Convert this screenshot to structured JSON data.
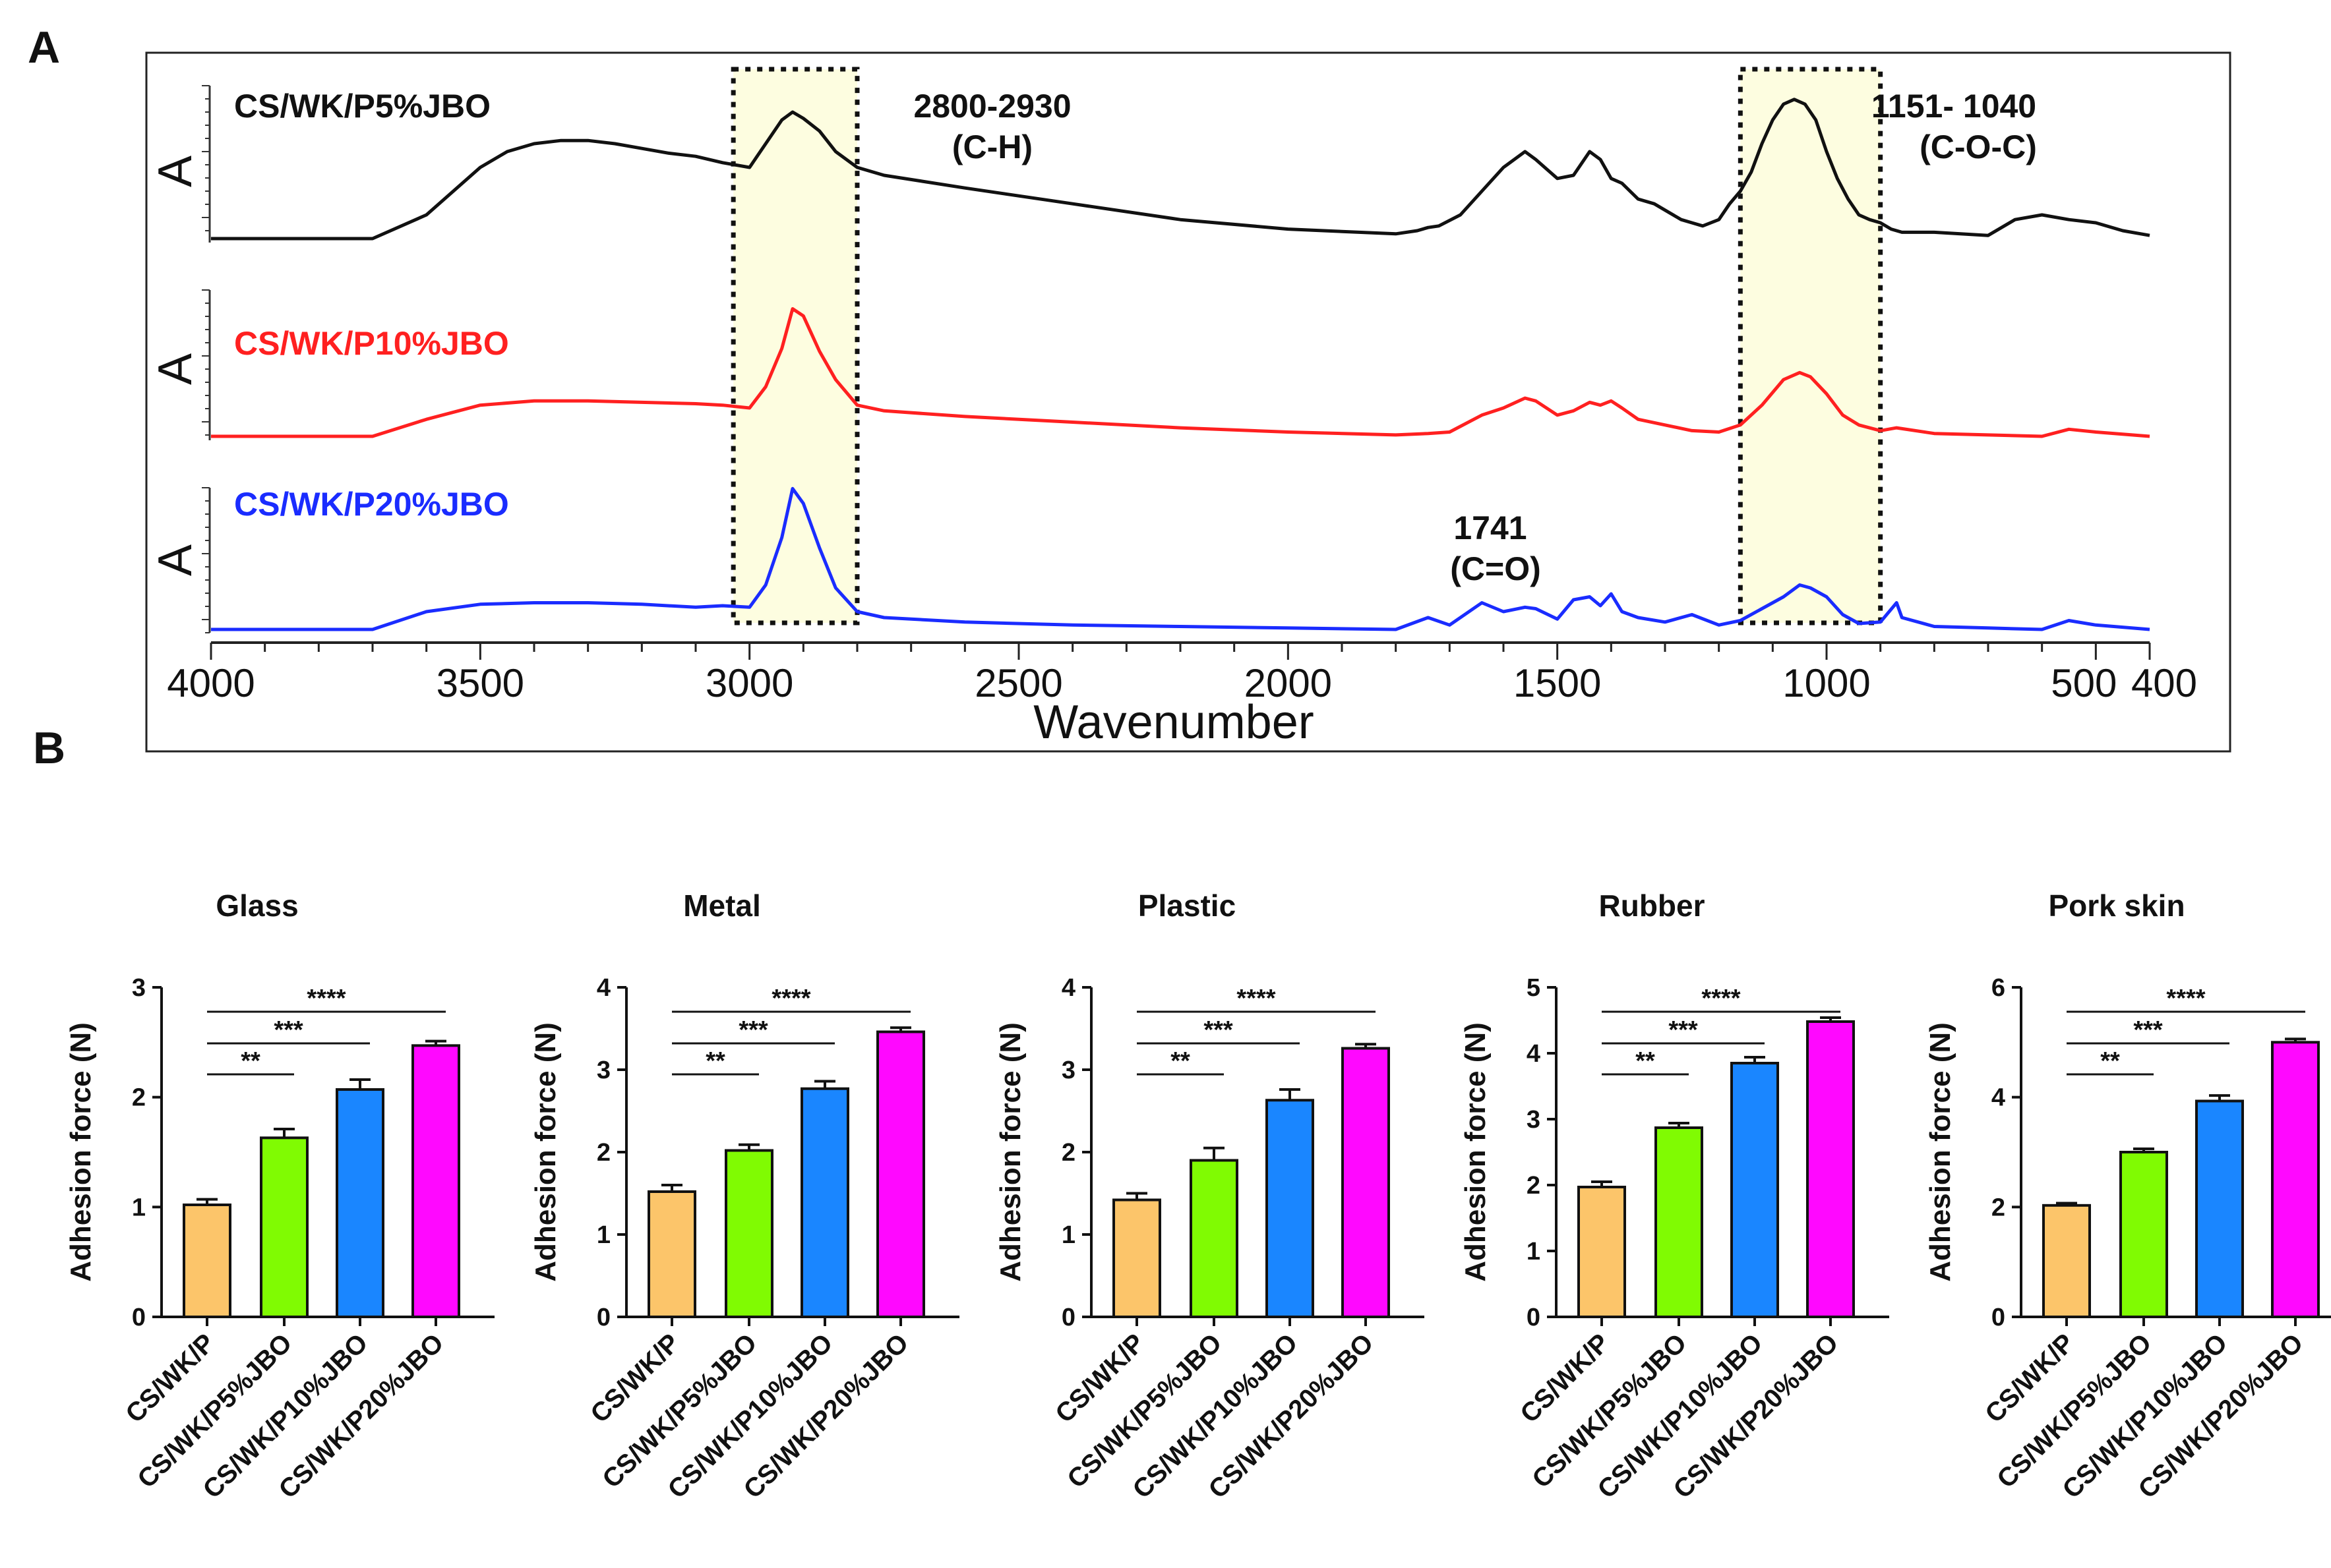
{
  "panels": {
    "a_letter": "A",
    "b_letter": "B"
  },
  "ftir": {
    "ylabel": "A",
    "xlabel": "Wavenumber",
    "x_ticks": [
      "4000",
      "3500",
      "3000",
      "2500",
      "2000",
      "1500",
      "1000",
      "500",
      "400"
    ],
    "series": [
      {
        "name": "CS/WK/P5%JBO",
        "color": "#111111"
      },
      {
        "name": "CS/WK/P10%JBO",
        "color": "#ff2020"
      },
      {
        "name": "CS/WK/P20%JBO",
        "color": "#1a2cff"
      }
    ],
    "annotations": {
      "ch_range": "2800-2930",
      "ch_group": "(C-H)",
      "coc_range": "1151- 1040",
      "coc_group": "(C-O-C)",
      "co_value": "1741",
      "co_group": "(C=O)"
    },
    "highlight_color": "#fdfde0"
  },
  "chart_data": [
    {
      "type": "line",
      "title": "",
      "xlabel": "Wavenumber",
      "ylabel": "A",
      "xlim": [
        4000,
        400
      ],
      "series": [
        {
          "name": "CS/WK/P5%JBO",
          "x": [
            4000,
            3700,
            3600,
            3500,
            3450,
            3400,
            3350,
            3300,
            3250,
            3200,
            3150,
            3100,
            3050,
            3000,
            2970,
            2940,
            2920,
            2900,
            2870,
            2840,
            2800,
            2750,
            2600,
            2400,
            2200,
            2000,
            1800,
            1760,
            1740,
            1720,
            1680,
            1640,
            1600,
            1560,
            1540,
            1500,
            1470,
            1440,
            1420,
            1400,
            1380,
            1350,
            1320,
            1300,
            1270,
            1250,
            1230,
            1200,
            1180,
            1160,
            1140,
            1120,
            1100,
            1080,
            1060,
            1040,
            1020,
            1000,
            980,
            960,
            940,
            920,
            900,
            880,
            860,
            800,
            700,
            650,
            600,
            550,
            500,
            450,
            400
          ],
          "y": [
            0.0,
            0.0,
            0.15,
            0.45,
            0.55,
            0.6,
            0.62,
            0.62,
            0.6,
            0.57,
            0.54,
            0.52,
            0.48,
            0.45,
            0.6,
            0.75,
            0.8,
            0.76,
            0.68,
            0.55,
            0.45,
            0.4,
            0.32,
            0.22,
            0.12,
            0.06,
            0.03,
            0.05,
            0.07,
            0.08,
            0.15,
            0.3,
            0.45,
            0.55,
            0.5,
            0.38,
            0.4,
            0.55,
            0.5,
            0.38,
            0.35,
            0.25,
            0.22,
            0.18,
            0.12,
            0.1,
            0.08,
            0.12,
            0.22,
            0.3,
            0.42,
            0.6,
            0.75,
            0.85,
            0.88,
            0.85,
            0.75,
            0.55,
            0.38,
            0.25,
            0.15,
            0.12,
            0.1,
            0.06,
            0.04,
            0.04,
            0.02,
            0.12,
            0.15,
            0.12,
            0.1,
            0.05,
            0.02
          ]
        },
        {
          "name": "CS/WK/P10%JBO",
          "x": [
            4000,
            3700,
            3600,
            3500,
            3400,
            3300,
            3200,
            3100,
            3050,
            3000,
            2970,
            2940,
            2920,
            2900,
            2870,
            2840,
            2800,
            2750,
            2600,
            2400,
            2200,
            2000,
            1800,
            1740,
            1700,
            1640,
            1600,
            1560,
            1540,
            1500,
            1470,
            1440,
            1420,
            1400,
            1380,
            1350,
            1300,
            1250,
            1200,
            1160,
            1120,
            1080,
            1050,
            1030,
            1000,
            970,
            940,
            900,
            870,
            800,
            700,
            600,
            550,
            500,
            400
          ],
          "y": [
            0.0,
            0.0,
            0.12,
            0.22,
            0.25,
            0.25,
            0.24,
            0.23,
            0.22,
            0.2,
            0.35,
            0.62,
            0.9,
            0.85,
            0.6,
            0.4,
            0.22,
            0.18,
            0.14,
            0.1,
            0.06,
            0.03,
            0.01,
            0.02,
            0.03,
            0.15,
            0.2,
            0.27,
            0.25,
            0.15,
            0.18,
            0.24,
            0.22,
            0.25,
            0.2,
            0.12,
            0.08,
            0.04,
            0.03,
            0.08,
            0.22,
            0.4,
            0.45,
            0.42,
            0.3,
            0.15,
            0.08,
            0.04,
            0.06,
            0.02,
            0.01,
            0.0,
            0.05,
            0.03,
            0.0
          ]
        },
        {
          "name": "CS/WK/P20%JBO",
          "x": [
            4000,
            3700,
            3600,
            3500,
            3400,
            3300,
            3200,
            3100,
            3050,
            3000,
            2970,
            2940,
            2920,
            2900,
            2870,
            2840,
            2800,
            2750,
            2600,
            2400,
            2200,
            2000,
            1800,
            1740,
            1700,
            1640,
            1600,
            1560,
            1540,
            1500,
            1470,
            1440,
            1420,
            1400,
            1380,
            1350,
            1300,
            1250,
            1200,
            1160,
            1120,
            1080,
            1050,
            1030,
            1000,
            970,
            940,
            900,
            870,
            860,
            800,
            700,
            600,
            550,
            500,
            400
          ],
          "y": [
            0.0,
            0.0,
            0.12,
            0.17,
            0.18,
            0.18,
            0.17,
            0.15,
            0.16,
            0.15,
            0.3,
            0.62,
            0.95,
            0.85,
            0.55,
            0.28,
            0.12,
            0.08,
            0.05,
            0.03,
            0.02,
            0.01,
            0.0,
            0.08,
            0.03,
            0.18,
            0.12,
            0.15,
            0.14,
            0.07,
            0.2,
            0.22,
            0.16,
            0.24,
            0.12,
            0.08,
            0.05,
            0.1,
            0.03,
            0.06,
            0.14,
            0.22,
            0.3,
            0.28,
            0.22,
            0.1,
            0.04,
            0.05,
            0.18,
            0.08,
            0.02,
            0.01,
            0.0,
            0.06,
            0.03,
            0.0
          ]
        }
      ]
    },
    {
      "type": "bar",
      "title": "Glass",
      "xlabel": "",
      "ylabel": "Adhesion force (N)",
      "categories": [
        "CS/WK/P",
        "CS/WK/P5%JBO",
        "CS/WK/P10%JBO",
        "CS/WK/P20%JBO"
      ],
      "values": [
        1.02,
        1.63,
        2.07,
        2.47
      ],
      "errors": [
        0.05,
        0.08,
        0.09,
        0.04
      ],
      "ylim": [
        0,
        3
      ],
      "yticks": [
        "0",
        "1",
        "2",
        "3"
      ],
      "colors": [
        "#fcc56a",
        "#80fb02",
        "#1a86ff",
        "#ff08ff"
      ],
      "significance": [
        "**",
        "***",
        "****"
      ]
    },
    {
      "type": "bar",
      "title": "Metal",
      "xlabel": "",
      "ylabel": "Adhesion force (N)",
      "categories": [
        "CS/WK/P",
        "CS/WK/P5%JBO",
        "CS/WK/P10%JBO",
        "CS/WK/P20%JBO"
      ],
      "values": [
        1.52,
        2.02,
        2.77,
        3.46
      ],
      "errors": [
        0.08,
        0.07,
        0.09,
        0.05
      ],
      "ylim": [
        0,
        4
      ],
      "yticks": [
        "0",
        "1",
        "2",
        "3",
        "4"
      ],
      "colors": [
        "#fcc56a",
        "#80fb02",
        "#1a86ff",
        "#ff08ff"
      ],
      "significance": [
        "**",
        "***",
        "****"
      ]
    },
    {
      "type": "bar",
      "title": "Plastic",
      "xlabel": "",
      "ylabel": "Adhesion force (N)",
      "categories": [
        "CS/WK/P",
        "CS/WK/P5%JBO",
        "CS/WK/P10%JBO",
        "CS/WK/P20%JBO"
      ],
      "values": [
        1.42,
        1.9,
        2.63,
        3.26
      ],
      "errors": [
        0.08,
        0.15,
        0.13,
        0.05
      ],
      "ylim": [
        0,
        4
      ],
      "yticks": [
        "0",
        "1",
        "2",
        "3",
        "4"
      ],
      "colors": [
        "#fcc56a",
        "#80fb02",
        "#1a86ff",
        "#ff08ff"
      ],
      "significance": [
        "**",
        "***",
        "****"
      ]
    },
    {
      "type": "bar",
      "title": "Rubber",
      "xlabel": "",
      "ylabel": "Adhesion force (N)",
      "categories": [
        "CS/WK/P",
        "CS/WK/P5%JBO",
        "CS/WK/P10%JBO",
        "CS/WK/P20%JBO"
      ],
      "values": [
        1.97,
        2.87,
        3.85,
        4.48
      ],
      "errors": [
        0.08,
        0.07,
        0.09,
        0.06
      ],
      "ylim": [
        0,
        5
      ],
      "yticks": [
        "0",
        "1",
        "2",
        "3",
        "4",
        "5"
      ],
      "colors": [
        "#fcc56a",
        "#80fb02",
        "#1a86ff",
        "#ff08ff"
      ],
      "significance": [
        "**",
        "***",
        "****"
      ]
    },
    {
      "type": "bar",
      "title": "Pork skin",
      "xlabel": "",
      "ylabel": "Adhesion force (N)",
      "categories": [
        "CS/WK/P",
        "CS/WK/P5%JBO",
        "CS/WK/P10%JBO",
        "CS/WK/P20%JBO"
      ],
      "values": [
        2.03,
        3.0,
        3.93,
        5.0
      ],
      "errors": [
        0.04,
        0.06,
        0.1,
        0.06
      ],
      "ylim": [
        0,
        6
      ],
      "yticks": [
        "0",
        "2",
        "4",
        "6"
      ],
      "colors": [
        "#fcc56a",
        "#80fb02",
        "#1a86ff",
        "#ff08ff"
      ],
      "significance": [
        "**",
        "***",
        "****"
      ]
    }
  ]
}
